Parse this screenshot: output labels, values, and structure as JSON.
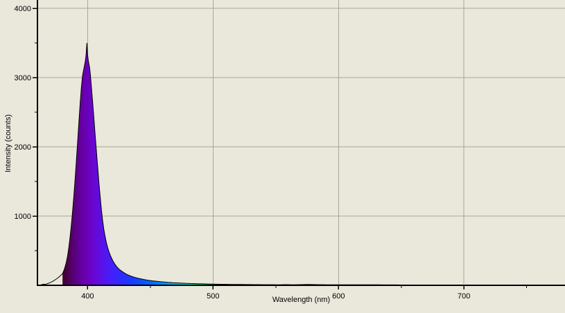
{
  "window": {
    "background_color": "#eae7db"
  },
  "chart_data": {
    "type": "area",
    "title": "",
    "xlabel": "Wavelength (nm)",
    "ylabel": "Intensity (counts)",
    "xlim": [
      360,
      780
    ],
    "ylim": [
      0,
      4120
    ],
    "grid": "major-only",
    "legend": "none",
    "x_ticks_major": [
      400,
      500,
      600,
      700
    ],
    "x_ticks_minor": [
      450,
      550,
      650,
      750
    ],
    "y_ticks_major": [
      1000,
      2000,
      3000,
      4000
    ],
    "y_ticks_minor": [
      500,
      1500,
      2500,
      3500
    ],
    "peak": {
      "wavelength_nm": 399.45,
      "counts": 3500
    },
    "colors": {
      "background": "#eae7db",
      "gridline": "#a8a79e",
      "axis": "#000000",
      "curve_stroke": "#000000",
      "text": "#000000"
    },
    "fill_range_nm": [
      380,
      520
    ],
    "spectral_stops": [
      {
        "nm": 380,
        "color": "#3e0026"
      },
      {
        "nm": 385,
        "color": "#4e0054"
      },
      {
        "nm": 390,
        "color": "#5a0080"
      },
      {
        "nm": 395,
        "color": "#64009f"
      },
      {
        "nm": 400,
        "color": "#6b00bb"
      },
      {
        "nm": 405,
        "color": "#6806d2"
      },
      {
        "nm": 410,
        "color": "#5e0ee4"
      },
      {
        "nm": 415,
        "color": "#5017f2"
      },
      {
        "nm": 420,
        "color": "#4121fb"
      },
      {
        "nm": 425,
        "color": "#3329ff"
      },
      {
        "nm": 430,
        "color": "#2631ff"
      },
      {
        "nm": 435,
        "color": "#1a3aff"
      },
      {
        "nm": 440,
        "color": "#0f46ff"
      },
      {
        "nm": 445,
        "color": "#0756ff"
      },
      {
        "nm": 450,
        "color": "#0066ff"
      },
      {
        "nm": 455,
        "color": "#0079fe"
      },
      {
        "nm": 460,
        "color": "#008efa"
      },
      {
        "nm": 465,
        "color": "#00a3f2"
      },
      {
        "nm": 470,
        "color": "#00b6e6"
      },
      {
        "nm": 475,
        "color": "#00c9d2"
      },
      {
        "nm": 480,
        "color": "#00d8b8"
      },
      {
        "nm": 485,
        "color": "#00e098"
      },
      {
        "nm": 490,
        "color": "#00e078"
      },
      {
        "nm": 495,
        "color": "#00d858"
      },
      {
        "nm": 500,
        "color": "#00d040"
      },
      {
        "nm": 505,
        "color": "#00c830"
      },
      {
        "nm": 510,
        "color": "#00c020"
      },
      {
        "nm": 515,
        "color": "#00ba10"
      },
      {
        "nm": 520,
        "color": "#00b400"
      }
    ],
    "points": [
      [
        360,
        2
      ],
      [
        361,
        3
      ],
      [
        362,
        5
      ],
      [
        363,
        8
      ],
      [
        364,
        12
      ],
      [
        365,
        16
      ],
      [
        366,
        13
      ],
      [
        367,
        18
      ],
      [
        368,
        24
      ],
      [
        369,
        30
      ],
      [
        370,
        38
      ],
      [
        371,
        46
      ],
      [
        372,
        56
      ],
      [
        373,
        66
      ],
      [
        374,
        78
      ],
      [
        375,
        90
      ],
      [
        376,
        104
      ],
      [
        377,
        118
      ],
      [
        378,
        134
      ],
      [
        379,
        150
      ],
      [
        380,
        168
      ],
      [
        381,
        210
      ],
      [
        382,
        265
      ],
      [
        383,
        330
      ],
      [
        384,
        420
      ],
      [
        385,
        540
      ],
      [
        386,
        690
      ],
      [
        387,
        870
      ],
      [
        388,
        1070
      ],
      [
        389,
        1290
      ],
      [
        390,
        1530
      ],
      [
        391,
        1790
      ],
      [
        392,
        2060
      ],
      [
        393,
        2340
      ],
      [
        394,
        2610
      ],
      [
        395,
        2850
      ],
      [
        396,
        3030
      ],
      [
        397,
        3130
      ],
      [
        397.6,
        3180
      ],
      [
        398.2,
        3240
      ],
      [
        398.8,
        3330
      ],
      [
        399.2,
        3440
      ],
      [
        399.45,
        3500
      ],
      [
        399.7,
        3430
      ],
      [
        400,
        3330
      ],
      [
        400.5,
        3250
      ],
      [
        401,
        3200
      ],
      [
        401.6,
        3140
      ],
      [
        402.2,
        3040
      ],
      [
        403,
        2870
      ],
      [
        404,
        2650
      ],
      [
        405,
        2420
      ],
      [
        406,
        2180
      ],
      [
        407,
        1950
      ],
      [
        408,
        1710
      ],
      [
        409,
        1480
      ],
      [
        410,
        1280
      ],
      [
        411,
        1090
      ],
      [
        412,
        930
      ],
      [
        413,
        800
      ],
      [
        414,
        700
      ],
      [
        415,
        615
      ],
      [
        416,
        545
      ],
      [
        417,
        487
      ],
      [
        418,
        437
      ],
      [
        419,
        395
      ],
      [
        420,
        358
      ],
      [
        421,
        326
      ],
      [
        422,
        298
      ],
      [
        423,
        274
      ],
      [
        424,
        253
      ],
      [
        425,
        235
      ],
      [
        426,
        220
      ],
      [
        427,
        207
      ],
      [
        428,
        194
      ],
      [
        429,
        182
      ],
      [
        430,
        171
      ],
      [
        431,
        161
      ],
      [
        432,
        152
      ],
      [
        433,
        144
      ],
      [
        434,
        137
      ],
      [
        435,
        130
      ],
      [
        436,
        124
      ],
      [
        437,
        118
      ],
      [
        438,
        113
      ],
      [
        439,
        108
      ],
      [
        440,
        103
      ],
      [
        442,
        95
      ],
      [
        444,
        87
      ],
      [
        446,
        80
      ],
      [
        448,
        74
      ],
      [
        450,
        69
      ],
      [
        452,
        64
      ],
      [
        454,
        60
      ],
      [
        456,
        56
      ],
      [
        458,
        52
      ],
      [
        460,
        49
      ],
      [
        462,
        46
      ],
      [
        464,
        43
      ],
      [
        466,
        41
      ],
      [
        468,
        38
      ],
      [
        470,
        36
      ],
      [
        472,
        34
      ],
      [
        474,
        32
      ],
      [
        476,
        31
      ],
      [
        478,
        29
      ],
      [
        480,
        28
      ],
      [
        482,
        26
      ],
      [
        484,
        25
      ],
      [
        486,
        24
      ],
      [
        488,
        23
      ],
      [
        490,
        22
      ],
      [
        492,
        21
      ],
      [
        494,
        20
      ],
      [
        496,
        19
      ],
      [
        498,
        18
      ],
      [
        500,
        17
      ],
      [
        503,
        16
      ],
      [
        506,
        15
      ],
      [
        509,
        15
      ],
      [
        512,
        14
      ],
      [
        515,
        13
      ],
      [
        518,
        13
      ],
      [
        520,
        12
      ],
      [
        523,
        12
      ],
      [
        526,
        11
      ],
      [
        529,
        11
      ],
      [
        532,
        10
      ],
      [
        536,
        10
      ],
      [
        540,
        9
      ],
      [
        544,
        9
      ],
      [
        548,
        9
      ],
      [
        552,
        8
      ],
      [
        555,
        9
      ],
      [
        558,
        10
      ],
      [
        561,
        9
      ],
      [
        564,
        8
      ],
      [
        567,
        9
      ],
      [
        570,
        10
      ],
      [
        573,
        11
      ],
      [
        576,
        12
      ],
      [
        579,
        11
      ],
      [
        582,
        10
      ],
      [
        585,
        9
      ],
      [
        588,
        9
      ],
      [
        591,
        8
      ],
      [
        594,
        8
      ],
      [
        597,
        8
      ],
      [
        600,
        7
      ],
      [
        604,
        7
      ],
      [
        608,
        7
      ],
      [
        612,
        8
      ],
      [
        616,
        8
      ],
      [
        620,
        7
      ],
      [
        624,
        8
      ],
      [
        628,
        7
      ],
      [
        632,
        7
      ],
      [
        636,
        6
      ],
      [
        640,
        6
      ],
      [
        645,
        6
      ],
      [
        650,
        5
      ],
      [
        655,
        5
      ],
      [
        660,
        5
      ],
      [
        666,
        5
      ],
      [
        672,
        4
      ],
      [
        678,
        4
      ],
      [
        684,
        4
      ],
      [
        690,
        4
      ],
      [
        696,
        4
      ],
      [
        702,
        3
      ],
      [
        710,
        3
      ],
      [
        718,
        3
      ],
      [
        726,
        3
      ],
      [
        734,
        3
      ],
      [
        742,
        2
      ],
      [
        750,
        2
      ],
      [
        758,
        2
      ],
      [
        766,
        2
      ],
      [
        774,
        2
      ],
      [
        780,
        2
      ]
    ]
  }
}
